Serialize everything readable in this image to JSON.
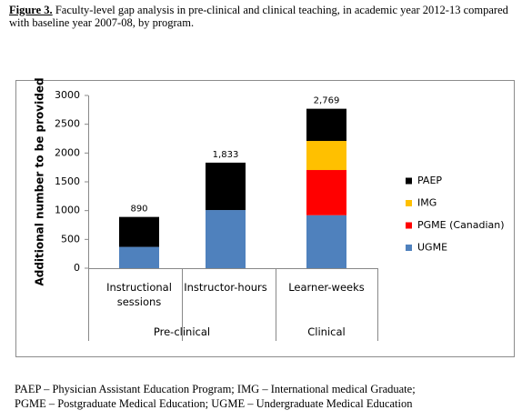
{
  "caption": {
    "label": "Figure 3.",
    "text": "Faculty-level gap analysis in pre-clinical and clinical teaching, in academic year 2012-13 compared with baseline year 2007-08, by program."
  },
  "chart_data": {
    "type": "stacked_bar",
    "y_label": "Additional number to be provided",
    "categories": [
      "Instructional sessions",
      "Instructor-hours",
      "Learner-weeks"
    ],
    "groups": [
      "Pre-clinical",
      "Clinical"
    ],
    "series": [
      {
        "name": "UGME",
        "color": "#4f81bd",
        "values": [
          370,
          1010,
          920
        ]
      },
      {
        "name": "PGME (Canadian)",
        "color": "#ff0000",
        "values": [
          null,
          null,
          785
        ]
      },
      {
        "name": "IMG",
        "color": "#ffc000",
        "values": [
          null,
          null,
          505
        ]
      },
      {
        "name": "PAEP",
        "color": "#000000",
        "values": [
          520,
          823,
          559
        ]
      }
    ],
    "totals": {
      "values": [
        890,
        1833,
        2769
      ],
      "value_labels": [
        "890",
        "1,833",
        "2,769"
      ]
    },
    "ylim": [
      0,
      3000
    ],
    "yticks": [
      0,
      500,
      1000,
      1500,
      2000,
      2500,
      3000
    ],
    "grid": false,
    "legend": "right"
  },
  "footnote": [
    "PAEP – Physician Assistant Education Program; IMG – International medical Graduate;",
    "PGME – Postgraduate Medical Education; UGME – Undergraduate Medical Education"
  ]
}
